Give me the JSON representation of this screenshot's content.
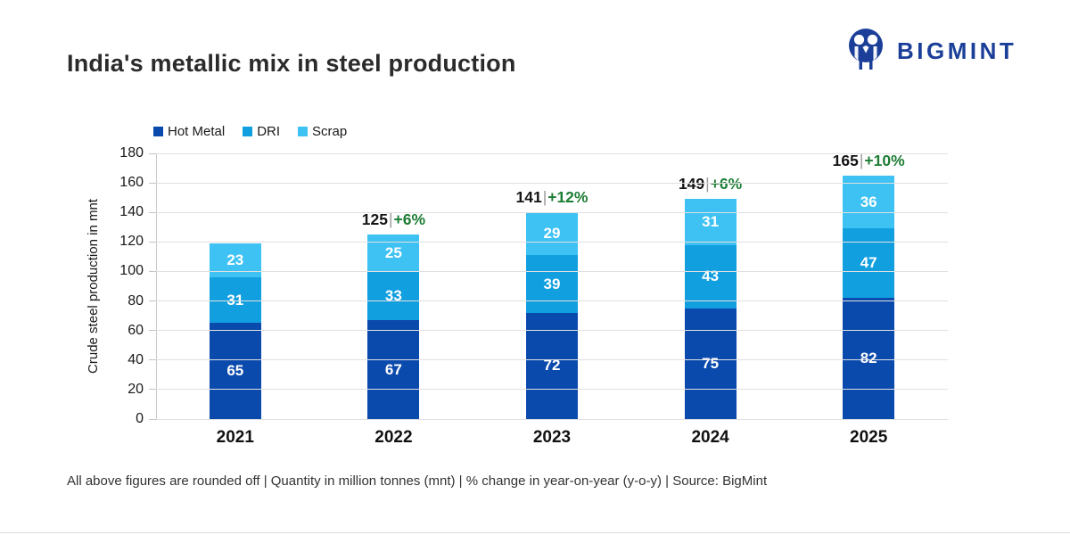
{
  "header": {
    "title": "India's metallic mix in steel production",
    "brand": {
      "name": "BIGMINT",
      "color": "#1b3f99"
    }
  },
  "chart_data": {
    "type": "bar",
    "stacked": true,
    "title": "India's metallic mix in steel production",
    "categories": [
      "2021",
      "2022",
      "2023",
      "2024",
      "2025"
    ],
    "series": [
      {
        "name": "Hot Metal",
        "color": "#0b4aad",
        "values": [
          65,
          67,
          72,
          75,
          82
        ]
      },
      {
        "name": "DRI",
        "color": "#129fe0",
        "values": [
          31,
          33,
          39,
          43,
          47
        ]
      },
      {
        "name": "Scrap",
        "color": "#3dc2f3",
        "values": [
          23,
          25,
          29,
          31,
          36
        ]
      }
    ],
    "total_labels": [
      "",
      "125",
      "141",
      "149",
      "165"
    ],
    "yoy_labels": [
      "",
      "+6%",
      "+12%",
      "+6%",
      "+10%"
    ],
    "label_separator": "|",
    "ylabel": "Crude steel production in mnt",
    "ylim": [
      0,
      180
    ],
    "yticks": [
      0,
      20,
      40,
      60,
      80,
      100,
      120,
      140,
      160,
      180
    ],
    "grid": true,
    "legend_position": "top-left",
    "value_label_color": "#ffffff",
    "yoy_color": "#1e7d34"
  },
  "footer": {
    "note": "All above figures are rounded off | Quantity in million tonnes (mnt) | % change in year-on-year (y-o-y) | Source: BigMint"
  }
}
